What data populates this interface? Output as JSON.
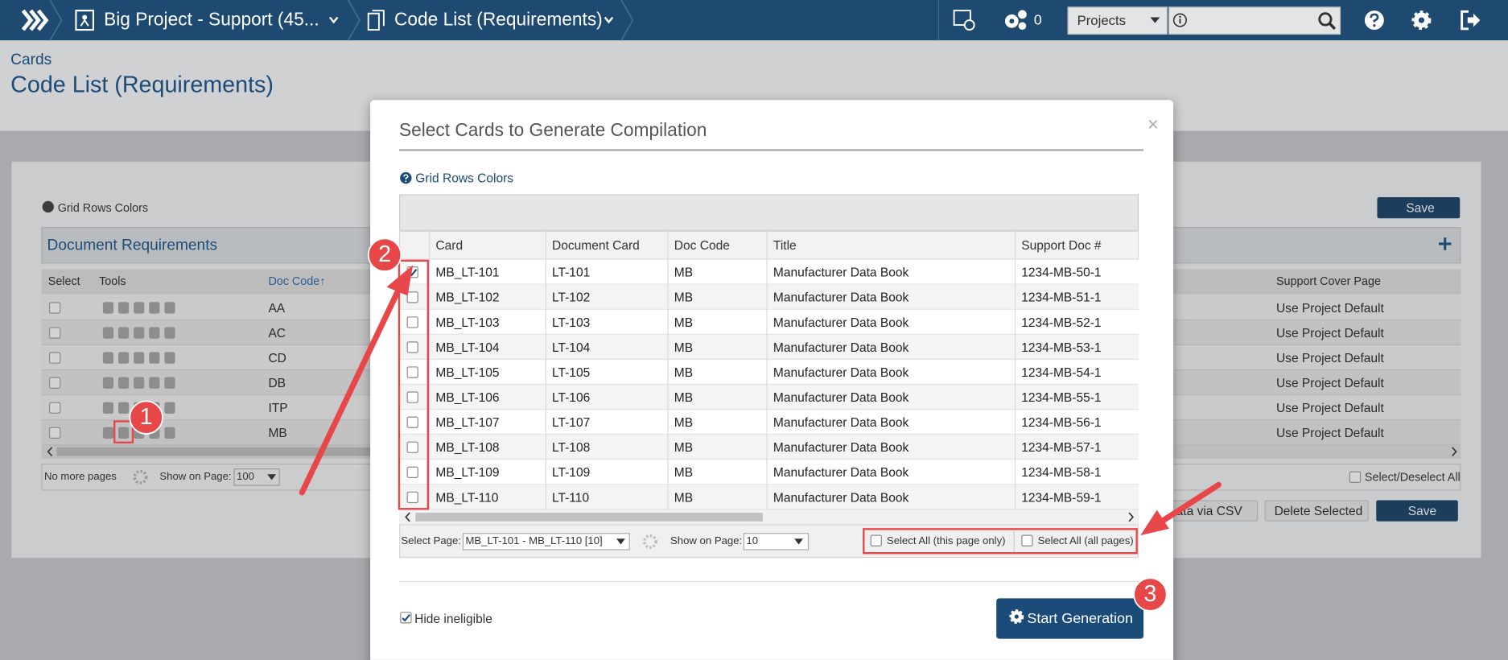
{
  "topbar": {
    "breadcrumbs": [
      "Big Project - Support (45...",
      "Code List (Requirements)"
    ],
    "counter": "0",
    "projects": "Projects"
  },
  "header": {
    "section": "Cards",
    "title": "Code List (Requirements)"
  },
  "background": {
    "grid_rows_colors": "Grid Rows Colors",
    "save": "Save",
    "panel_title": "Document Requirements",
    "columns": [
      "Select",
      "Tools",
      "Doc Code↑",
      "Support Cover Page"
    ],
    "rows": [
      {
        "code": "AA",
        "cover": "Use Project Default"
      },
      {
        "code": "AC",
        "cover": "Use Project Default"
      },
      {
        "code": "CD",
        "cover": "Use Project Default"
      },
      {
        "code": "DB",
        "cover": "Use Project Default"
      },
      {
        "code": "ITP",
        "cover": "Use Project Default"
      },
      {
        "code": "MB",
        "cover": "Use Project Default"
      }
    ],
    "no_more_pages": "No more pages",
    "show_on_page": "Show on Page:",
    "page_size": "100",
    "select_deselect_all": "Select/Deselect All",
    "buttons": [
      "ata via CSV",
      "Delete Selected",
      "Save"
    ]
  },
  "modal": {
    "title": "Select Cards to Generate Compilation",
    "close": "×",
    "grid_rows_colors": "Grid Rows Colors",
    "columns": [
      "Card",
      "Document Card",
      "Doc Code",
      "Title",
      "Support Doc #"
    ],
    "rows": [
      {
        "card": "MB_LT-101",
        "doc_card": "LT-101",
        "doc_code": "MB",
        "title": "Manufacturer Data Book",
        "support_doc": "1234-MB-50-1",
        "checked": true
      },
      {
        "card": "MB_LT-102",
        "doc_card": "LT-102",
        "doc_code": "MB",
        "title": "Manufacturer Data Book",
        "support_doc": "1234-MB-51-1",
        "checked": false
      },
      {
        "card": "MB_LT-103",
        "doc_card": "LT-103",
        "doc_code": "MB",
        "title": "Manufacturer Data Book",
        "support_doc": "1234-MB-52-1",
        "checked": false
      },
      {
        "card": "MB_LT-104",
        "doc_card": "LT-104",
        "doc_code": "MB",
        "title": "Manufacturer Data Book",
        "support_doc": "1234-MB-53-1",
        "checked": false
      },
      {
        "card": "MB_LT-105",
        "doc_card": "LT-105",
        "doc_code": "MB",
        "title": "Manufacturer Data Book",
        "support_doc": "1234-MB-54-1",
        "checked": false
      },
      {
        "card": "MB_LT-106",
        "doc_card": "LT-106",
        "doc_code": "MB",
        "title": "Manufacturer Data Book",
        "support_doc": "1234-MB-55-1",
        "checked": false
      },
      {
        "card": "MB_LT-107",
        "doc_card": "LT-107",
        "doc_code": "MB",
        "title": "Manufacturer Data Book",
        "support_doc": "1234-MB-56-1",
        "checked": false
      },
      {
        "card": "MB_LT-108",
        "doc_card": "LT-108",
        "doc_code": "MB",
        "title": "Manufacturer Data Book",
        "support_doc": "1234-MB-57-1",
        "checked": false
      },
      {
        "card": "MB_LT-109",
        "doc_card": "LT-109",
        "doc_code": "MB",
        "title": "Manufacturer Data Book",
        "support_doc": "1234-MB-58-1",
        "checked": false
      },
      {
        "card": "MB_LT-110",
        "doc_card": "LT-110",
        "doc_code": "MB",
        "title": "Manufacturer Data Book",
        "support_doc": "1234-MB-59-1",
        "checked": false
      }
    ],
    "select_page_label": "Select Page:",
    "select_page_value": "MB_LT-101 - MB_LT-110 [10]",
    "show_on_page": "Show on Page:",
    "page_size": "10",
    "select_all_page": "Select All (this page only)",
    "select_all_pages": "Select All (all pages)",
    "hide_ineligible": {
      "label": "Hide ineligible",
      "checked": true
    },
    "start": "Start Generation"
  },
  "callouts": [
    "1",
    "2",
    "3"
  ]
}
